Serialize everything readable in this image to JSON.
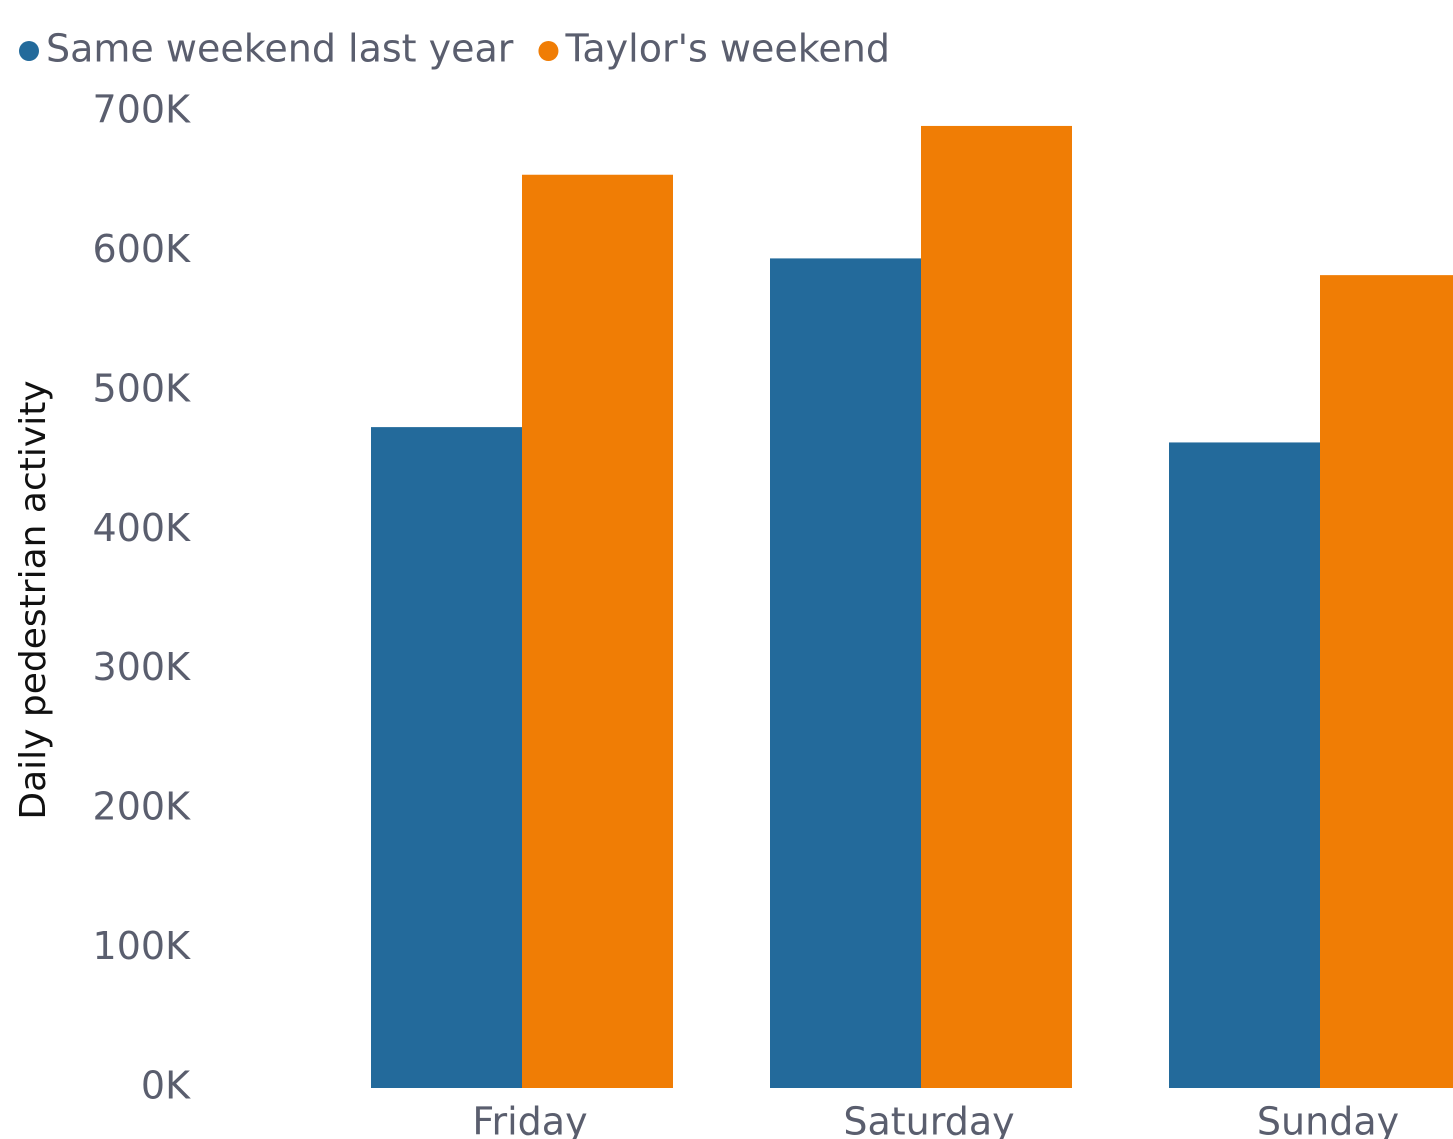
{
  "chart_data": {
    "type": "bar",
    "y_label": "Daily pedestrian activity",
    "categories": [
      "Friday",
      "Saturday",
      "Sunday"
    ],
    "series": [
      {
        "name": "Same weekend last year",
        "color": "#236a9b",
        "values": [
          474000,
          595000,
          463000
        ]
      },
      {
        "name": "Taylor's weekend",
        "color": "#f07d05",
        "values": [
          655000,
          690000,
          583000
        ]
      }
    ],
    "ylim": [
      0,
      700000
    ],
    "yticks": [
      {
        "value": 0,
        "label": "0K"
      },
      {
        "value": 100000,
        "label": "100K"
      },
      {
        "value": 200000,
        "label": "200K"
      },
      {
        "value": 300000,
        "label": "300K"
      },
      {
        "value": 400000,
        "label": "400K"
      },
      {
        "value": 500000,
        "label": "500K"
      },
      {
        "value": 600000,
        "label": "600K"
      },
      {
        "value": 700000,
        "label": "700K"
      }
    ],
    "legend": "top-left"
  }
}
